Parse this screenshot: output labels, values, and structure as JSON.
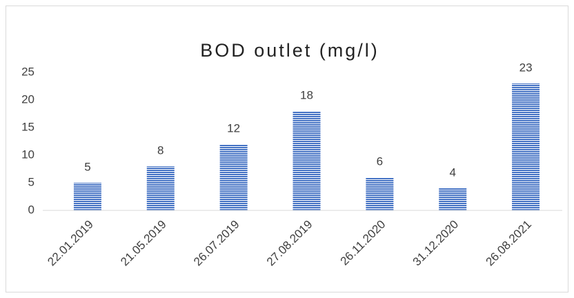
{
  "chart_data": {
    "type": "bar",
    "title": "BOD outlet  (mg/l)",
    "categories": [
      "22.01.2019",
      "21.05.2019",
      "26.07.2019",
      "27.08.2019",
      "26.11.2020",
      "31.12.2020",
      "26.08.2021"
    ],
    "values": [
      5,
      8,
      12,
      18,
      6,
      4,
      23
    ],
    "color": "#4472c4",
    "ylim": [
      0,
      25
    ],
    "yticks": [
      0,
      5,
      10,
      15,
      20,
      25
    ],
    "grid": false
  }
}
